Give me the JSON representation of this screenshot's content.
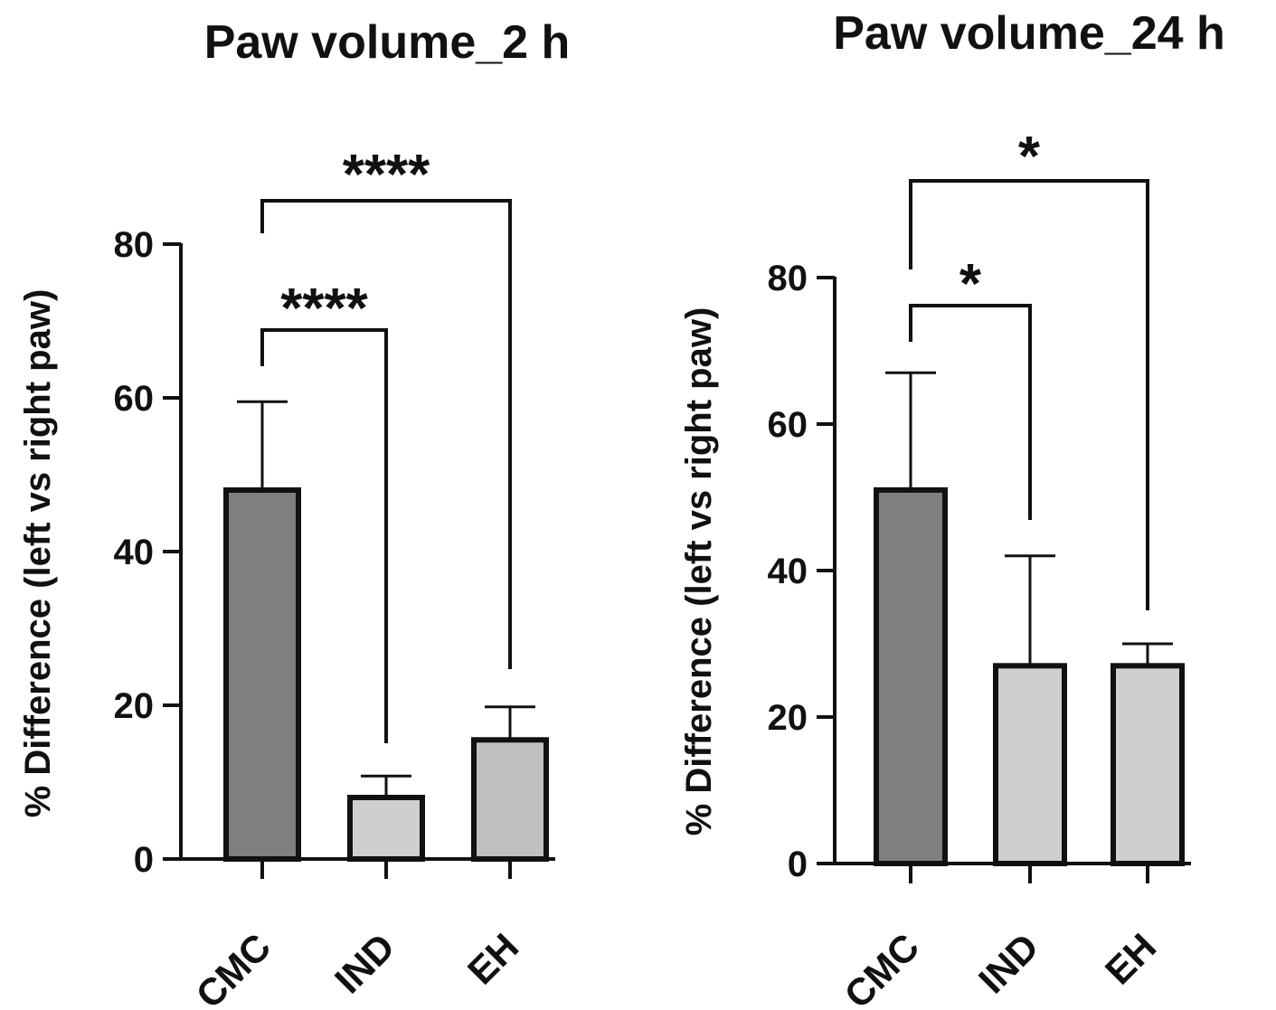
{
  "colors": {
    "axis": "#111111",
    "cmc_fill": "#7f7f7f",
    "treat_fill": "#cfcfcf",
    "treat_fill_2": "#c0c0c0"
  },
  "chart_data": [
    {
      "type": "bar",
      "title": "Paw volume_2 h",
      "ylabel": "% Difference (left vs right paw)",
      "xlabel": "",
      "categories": [
        "CMC",
        "IND",
        "EH"
      ],
      "values": [
        48,
        8,
        15.5
      ],
      "errors": [
        11.5,
        2.8,
        4.3
      ],
      "ylim": [
        0,
        80
      ],
      "yticks": [
        "0",
        "20",
        "40",
        "60",
        "80"
      ],
      "significance": [
        {
          "from": "CMC",
          "to": "IND",
          "label": "****"
        },
        {
          "from": "CMC",
          "to": "EH",
          "label": "****"
        }
      ]
    },
    {
      "type": "bar",
      "title": "Paw volume_24 h",
      "ylabel": "% Difference (left vs right paw)",
      "xlabel": "",
      "categories": [
        "CMC",
        "IND",
        "EH"
      ],
      "values": [
        51,
        27,
        27
      ],
      "errors": [
        16,
        15,
        3
      ],
      "ylim": [
        0,
        80
      ],
      "yticks": [
        "0",
        "20",
        "40",
        "60",
        "80"
      ],
      "significance": [
        {
          "from": "CMC",
          "to": "IND",
          "label": "*"
        },
        {
          "from": "CMC",
          "to": "EH",
          "label": "*"
        }
      ]
    }
  ]
}
